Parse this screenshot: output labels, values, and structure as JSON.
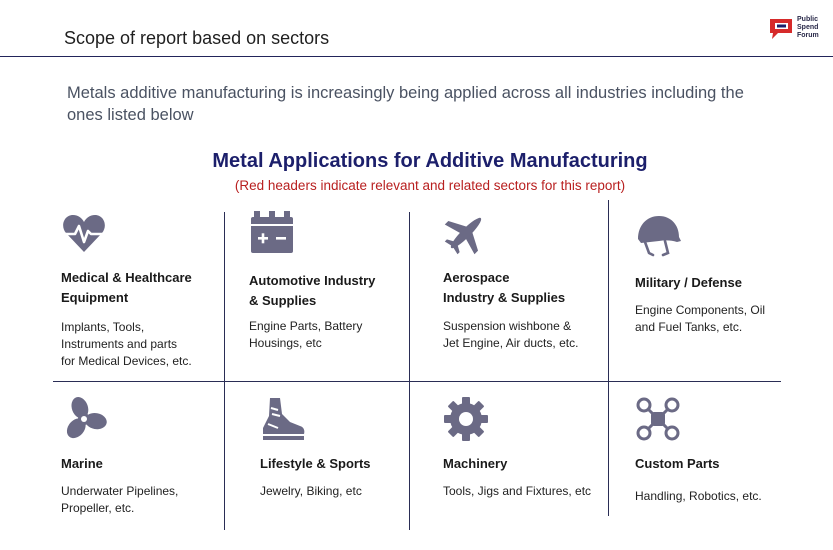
{
  "header": {
    "title": "Scope of report based on sectors",
    "logo": {
      "line1": "Public",
      "line2": "Spend",
      "line3": "Forum",
      "colors": {
        "red": "#d62a2a",
        "navy": "#1c1f6b"
      }
    }
  },
  "intro": "Metals additive manufacturing is increasingly being applied across all industries including the ones listed below",
  "heading": "Metal Applications for Additive Manufacturing",
  "subheading": "(Red headers indicate relevant and related sectors for this report)",
  "colors": {
    "icon": "#6b6a85",
    "rule": "#2a2d55",
    "heading": "#1c1f6b",
    "subheading": "#b81f1f"
  },
  "sectors": [
    {
      "icon": "heart-pulse-icon",
      "title_line1": "Medical & Healthcare",
      "title_line2": "Equipment",
      "desc_line1": "Implants, Tools,",
      "desc_line2": "Instruments and parts",
      "desc_line3": "for Medical Devices, etc."
    },
    {
      "icon": "car-battery-icon",
      "title_line1": "Automotive Industry",
      "title_line2": "& Supplies",
      "desc_line1": "Engine Parts, Battery",
      "desc_line2": "Housings, etc",
      "desc_line3": ""
    },
    {
      "icon": "airplane-icon",
      "title_line1": "Aerospace",
      "title_line2": "Industry & Supplies",
      "desc_line1": "Suspension wishbone &",
      "desc_line2": "Jet Engine, Air ducts, etc.",
      "desc_line3": ""
    },
    {
      "icon": "military-helmet-icon",
      "title_line1": "Military / Defense",
      "title_line2": "",
      "desc_line1": "Engine Components, Oil",
      "desc_line2": "and Fuel Tanks, etc.",
      "desc_line3": ""
    },
    {
      "icon": "propeller-icon",
      "title_line1": "Marine",
      "title_line2": "",
      "desc_line1": "Underwater Pipelines,",
      "desc_line2": "Propeller, etc.",
      "desc_line3": ""
    },
    {
      "icon": "running-shoe-icon",
      "title_line1": "Lifestyle & Sports",
      "title_line2": "",
      "desc_line1": "Jewelry, Biking, etc",
      "desc_line2": "",
      "desc_line3": ""
    },
    {
      "icon": "gear-icon",
      "title_line1": "Machinery",
      "title_line2": "",
      "desc_line1": "Tools, Jigs and Fixtures, etc",
      "desc_line2": "",
      "desc_line3": ""
    },
    {
      "icon": "drone-icon",
      "title_line1": "Custom Parts",
      "title_line2": "",
      "desc_line1": "Handling, Robotics, etc.",
      "desc_line2": "",
      "desc_line3": ""
    }
  ]
}
